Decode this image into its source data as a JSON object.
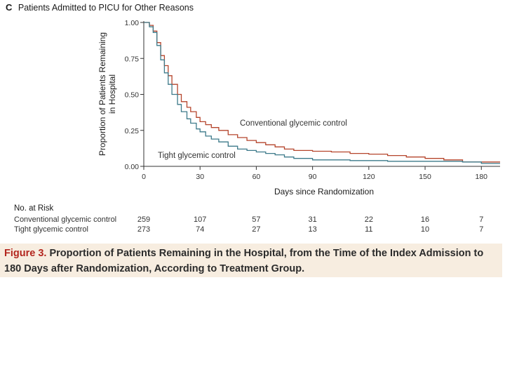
{
  "panel": {
    "letter": "C",
    "title": "Patients Admitted to PICU for Other Reasons"
  },
  "chart_data": {
    "type": "line",
    "ylabel": "Proportion of Patients Remaining in Hospital",
    "ylabel_lines": [
      "Proportion of Patients Remaining",
      "in Hospital"
    ],
    "xlabel": "Days since Randomization",
    "xlim": [
      0,
      190
    ],
    "ylim": [
      0,
      1
    ],
    "x_ticks": [
      0,
      30,
      60,
      90,
      120,
      150,
      180
    ],
    "y_ticks": [
      "0.00",
      "0.25",
      "0.50",
      "0.75",
      "1.00"
    ],
    "series": [
      {
        "name": "Conventional glycemic control",
        "label": "Conventional glycemic control",
        "color": "#b5452c",
        "x": [
          0,
          3,
          5,
          7,
          9,
          11,
          13,
          15,
          18,
          20,
          23,
          25,
          28,
          30,
          33,
          36,
          40,
          45,
          50,
          55,
          60,
          65,
          70,
          75,
          80,
          90,
          100,
          110,
          120,
          130,
          140,
          150,
          160,
          170,
          180,
          190
        ],
        "y": [
          1.0,
          0.98,
          0.94,
          0.86,
          0.77,
          0.7,
          0.63,
          0.57,
          0.5,
          0.45,
          0.41,
          0.38,
          0.34,
          0.31,
          0.29,
          0.27,
          0.25,
          0.22,
          0.2,
          0.18,
          0.165,
          0.15,
          0.135,
          0.12,
          0.11,
          0.105,
          0.1,
          0.09,
          0.085,
          0.075,
          0.065,
          0.055,
          0.045,
          0.03,
          0.03,
          0.03
        ]
      },
      {
        "name": "Tight glycemic control",
        "label": "Tight glycemic control",
        "color": "#3d7a8a",
        "x": [
          0,
          3,
          5,
          7,
          9,
          11,
          13,
          15,
          18,
          20,
          23,
          25,
          28,
          30,
          33,
          36,
          40,
          45,
          50,
          55,
          60,
          65,
          70,
          75,
          80,
          90,
          100,
          110,
          120,
          130,
          140,
          150,
          160,
          170,
          180,
          190
        ],
        "y": [
          1.0,
          0.97,
          0.93,
          0.84,
          0.74,
          0.65,
          0.57,
          0.5,
          0.43,
          0.38,
          0.33,
          0.3,
          0.26,
          0.24,
          0.21,
          0.19,
          0.17,
          0.14,
          0.12,
          0.11,
          0.1,
          0.09,
          0.08,
          0.065,
          0.055,
          0.045,
          0.045,
          0.04,
          0.04,
          0.035,
          0.035,
          0.035,
          0.035,
          0.03,
          0.02,
          0.02
        ]
      }
    ]
  },
  "risk_table": {
    "heading": "No. at Risk",
    "rows": [
      {
        "label": "Conventional glycemic control",
        "values": [
          "259",
          "107",
          "57",
          "31",
          "22",
          "16",
          "7"
        ]
      },
      {
        "label": "Tight glycemic control",
        "values": [
          "273",
          "74",
          "27",
          "13",
          "11",
          "10",
          "7"
        ]
      }
    ]
  },
  "caption": {
    "label": "Figure 3.",
    "text": "Proportion of Patients Remaining in the Hospital, from the Time of the Index Admission to 180 Days after Randomization, According to Treatment Group."
  }
}
